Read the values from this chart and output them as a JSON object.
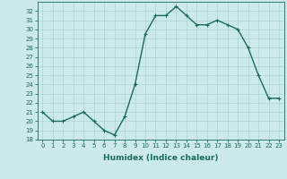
{
  "x": [
    0,
    1,
    2,
    3,
    4,
    5,
    6,
    7,
    8,
    9,
    10,
    11,
    12,
    13,
    14,
    15,
    16,
    17,
    18,
    19,
    20,
    21,
    22,
    23
  ],
  "y": [
    21.0,
    20.0,
    20.0,
    20.5,
    21.0,
    20.0,
    19.0,
    18.5,
    20.5,
    24.0,
    29.5,
    31.5,
    31.5,
    32.5,
    31.5,
    30.5,
    30.5,
    31.0,
    30.5,
    30.0,
    28.0,
    25.0,
    22.5,
    22.5
  ],
  "line_color": "#1a6b5a",
  "marker": "+",
  "marker_size": 3,
  "bg_color": "#cceaea",
  "grid_color": "#aad4d4",
  "xlabel": "Humidex (Indice chaleur)",
  "xlim": [
    -0.5,
    23.5
  ],
  "ylim": [
    18,
    33
  ],
  "yticks": [
    18,
    19,
    20,
    21,
    22,
    23,
    24,
    25,
    26,
    27,
    28,
    29,
    30,
    31,
    32
  ],
  "xticks": [
    0,
    1,
    2,
    3,
    4,
    5,
    6,
    7,
    8,
    9,
    10,
    11,
    12,
    13,
    14,
    15,
    16,
    17,
    18,
    19,
    20,
    21,
    22,
    23
  ],
  "tick_fontsize": 5,
  "label_fontsize": 6.5,
  "line_width": 1.0,
  "axis_color": "#1a6b5a",
  "marker_edge_width": 0.8
}
